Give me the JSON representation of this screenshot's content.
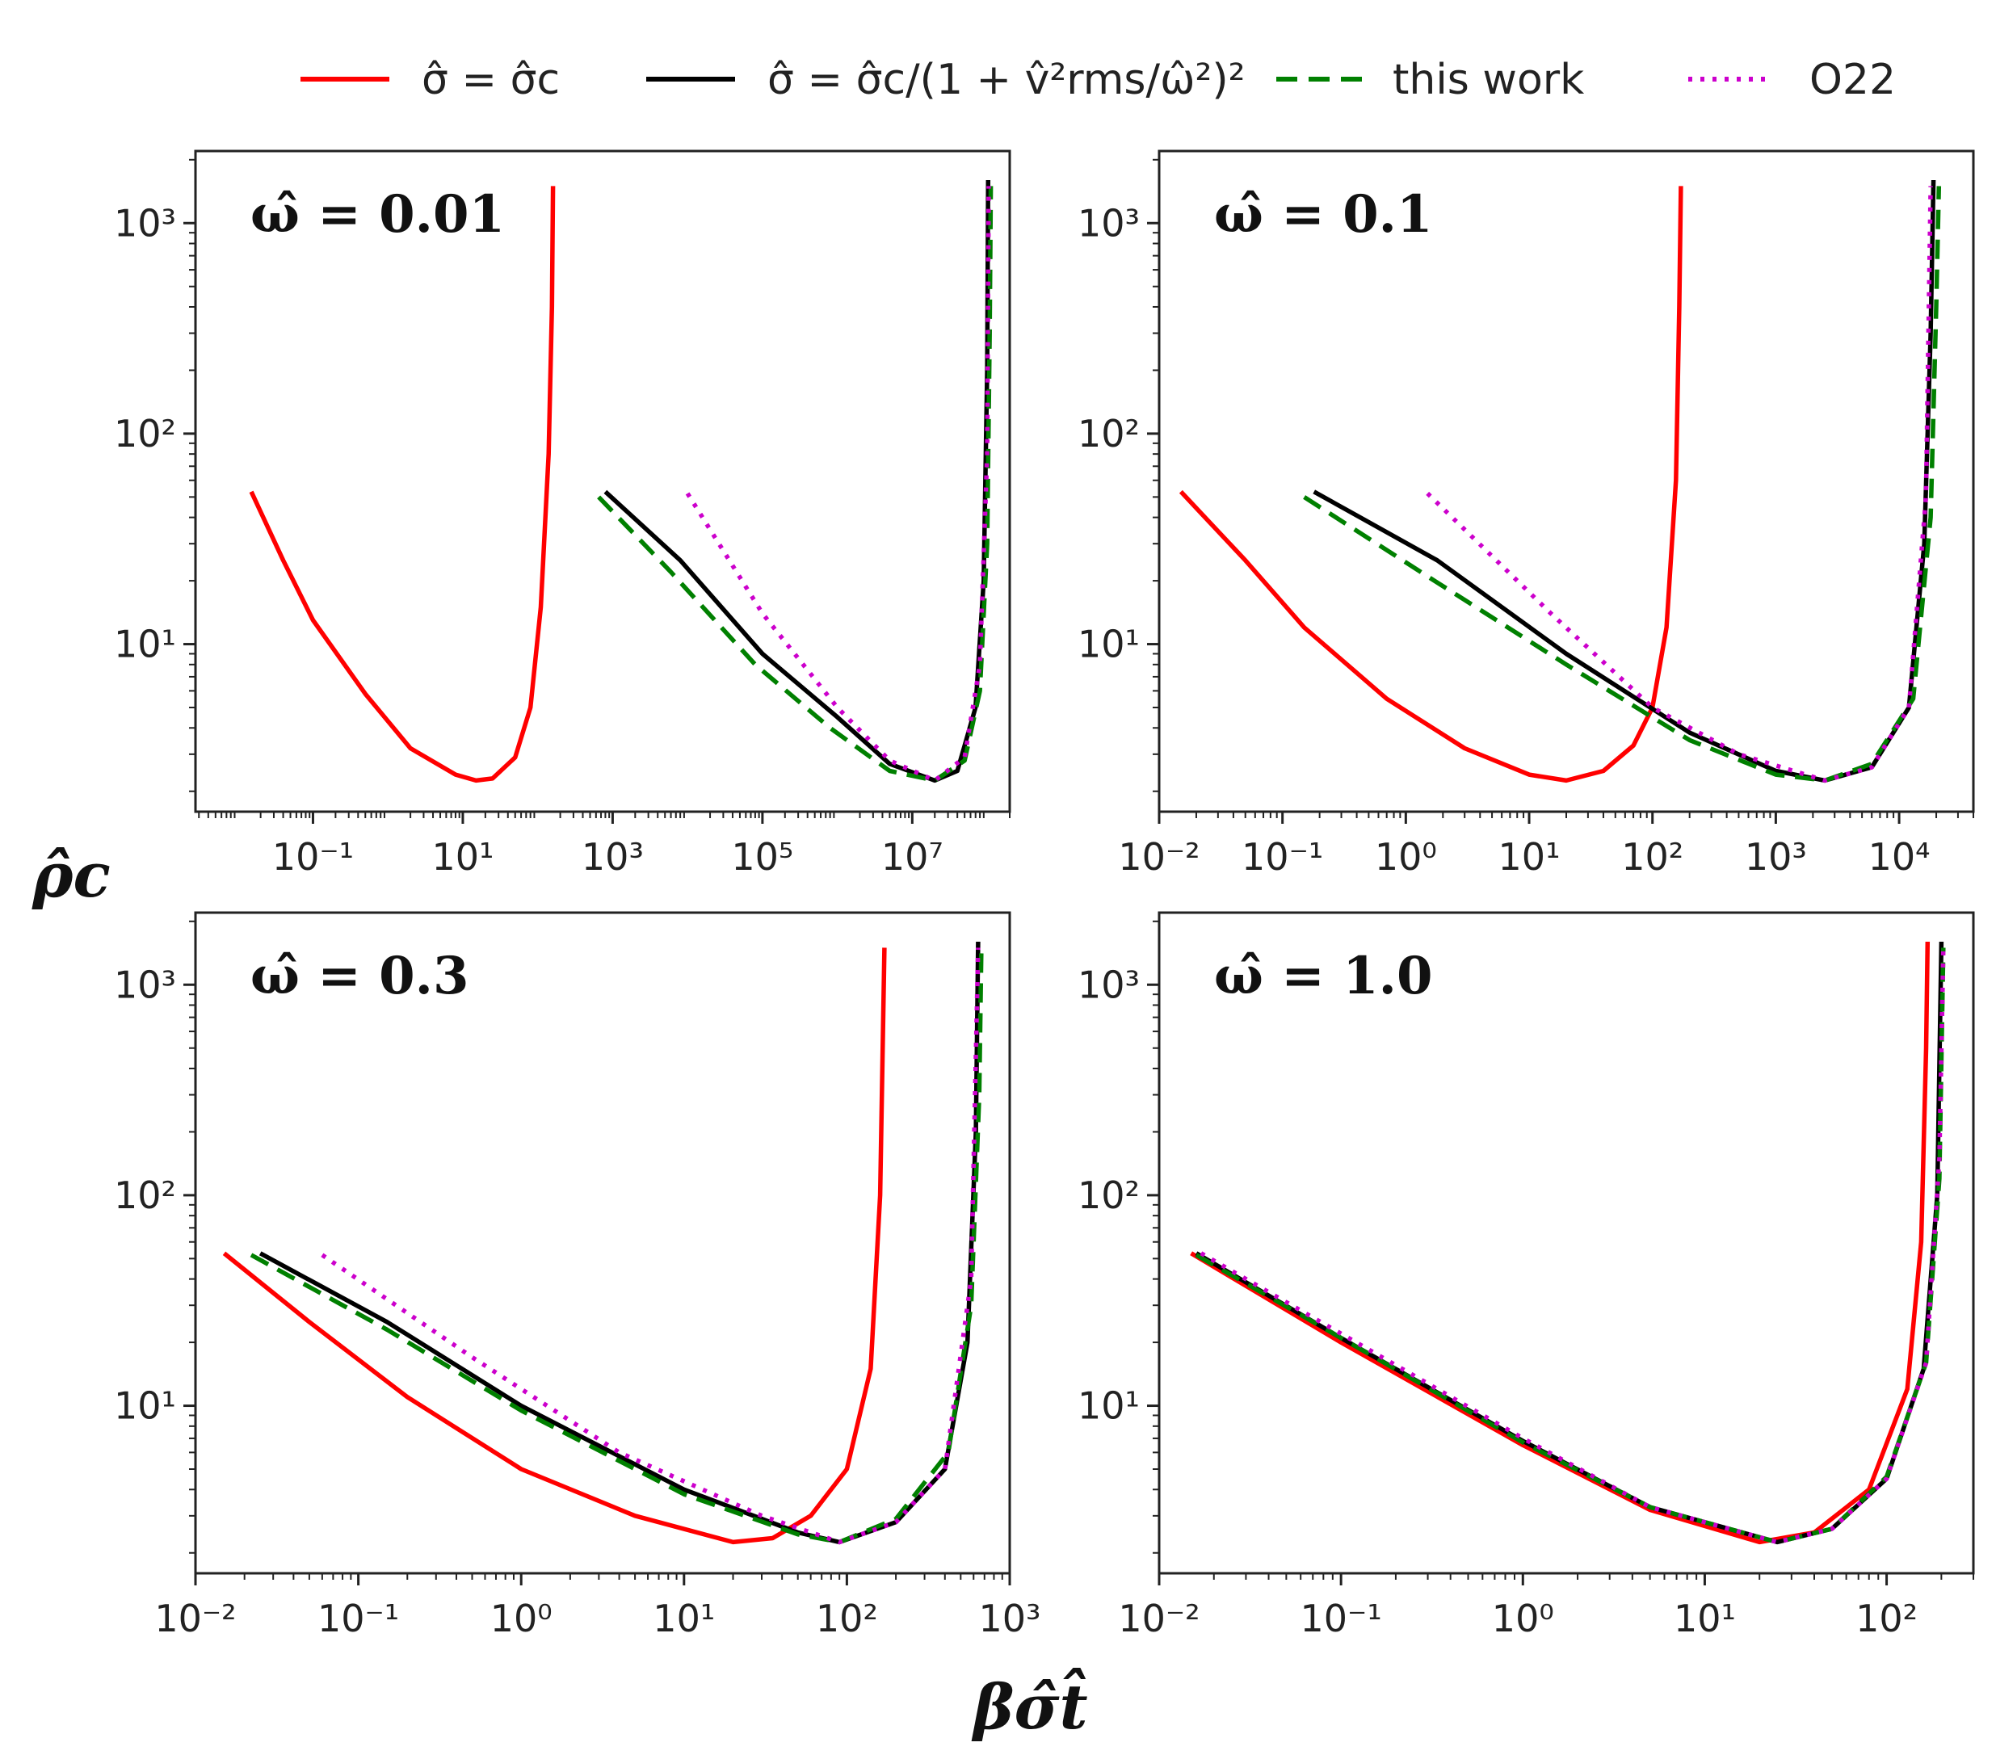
{
  "figure": {
    "ylabel": "ρ̂c",
    "xlabel": "βσ̂t̂"
  },
  "legend": [
    {
      "label": "σ̂ = σ̂c",
      "color": "#ff0000",
      "dash": "solid"
    },
    {
      "label": "σ̂ = σ̂c/(1 + v̂²rms/ω̂²)²",
      "color": "#000000",
      "dash": "solid"
    },
    {
      "label": "this work",
      "color": "#008000",
      "dash": "dashed"
    },
    {
      "label": "O22",
      "color": "#cc00cc",
      "dash": "dotted"
    }
  ],
  "chart_data": [
    {
      "type": "line",
      "panel_label": "ω̂ = 0.01",
      "x_scale": "log",
      "y_scale": "log",
      "xlim": [
        0.0027,
        200000000.0
      ],
      "ylim": [
        1.6,
        2200
      ],
      "x_tick_values": [
        0.1,
        10,
        1000,
        100000,
        10000000
      ],
      "x_tick_labels": [
        "10⁻¹",
        "10¹",
        "10³",
        "10⁵",
        "10⁷"
      ],
      "y_tick_values": [
        10,
        100,
        1000
      ],
      "y_tick_labels": [
        "10¹",
        "10²",
        "10³"
      ],
      "series": [
        {
          "name": "σ̂ = σ̂c",
          "points": [
            [
              0.015,
              53
            ],
            [
              0.04,
              25
            ],
            [
              0.1,
              13
            ],
            [
              0.5,
              5.8
            ],
            [
              2,
              3.2
            ],
            [
              8,
              2.4
            ],
            [
              15,
              2.25
            ],
            [
              25,
              2.3
            ],
            [
              50,
              2.9
            ],
            [
              80,
              5
            ],
            [
              110,
              15
            ],
            [
              140,
              80
            ],
            [
              155,
              400
            ],
            [
              160,
              1500
            ]
          ]
        },
        {
          "name": "σ̂ = σ̂c/(1 + v̂²rms/ω̂²)²",
          "points": [
            [
              800,
              53
            ],
            [
              8000,
              25
            ],
            [
              100000,
              9
            ],
            [
              1000000,
              4.5
            ],
            [
              5000000,
              2.7
            ],
            [
              20000000,
              2.25
            ],
            [
              40000000,
              2.5
            ],
            [
              70000000,
              5
            ],
            [
              90000000,
              20
            ],
            [
              100000000,
              200
            ],
            [
              103000000,
              1600
            ]
          ]
        },
        {
          "name": "this work",
          "points": [
            [
              650,
              50
            ],
            [
              6000,
              22
            ],
            [
              80000,
              8
            ],
            [
              800000,
              4
            ],
            [
              5000000,
              2.5
            ],
            [
              20000000,
              2.25
            ],
            [
              50000000,
              2.8
            ],
            [
              80000000,
              6
            ],
            [
              100000000,
              30
            ],
            [
              108000000,
              300
            ],
            [
              112000000,
              1500
            ]
          ]
        },
        {
          "name": "O22",
          "points": [
            [
              10000,
              52
            ],
            [
              100000,
              14
            ],
            [
              1000000,
              5
            ],
            [
              5000000,
              2.8
            ],
            [
              20000000,
              2.25
            ],
            [
              50000000,
              2.9
            ],
            [
              80000000,
              8
            ],
            [
              100000000,
              80
            ],
            [
              105000000,
              1500
            ]
          ]
        }
      ]
    },
    {
      "type": "line",
      "panel_label": "ω̂ = 0.1",
      "x_scale": "log",
      "y_scale": "log",
      "xlim": [
        0.01,
        40000
      ],
      "ylim": [
        1.6,
        2200
      ],
      "x_tick_values": [
        0.01,
        0.1,
        1,
        10,
        100,
        1000,
        10000
      ],
      "x_tick_labels": [
        "10⁻²",
        "10⁻¹",
        "10⁰",
        "10¹",
        "10²",
        "10³",
        "10⁴"
      ],
      "y_tick_values": [
        10,
        100,
        1000
      ],
      "y_tick_labels": [
        "10¹",
        "10²",
        "10³"
      ],
      "series": [
        {
          "name": "σ̂ = σ̂c",
          "points": [
            [
              0.015,
              53
            ],
            [
              0.05,
              25
            ],
            [
              0.15,
              12
            ],
            [
              0.7,
              5.5
            ],
            [
              3,
              3.2
            ],
            [
              10,
              2.4
            ],
            [
              20,
              2.25
            ],
            [
              40,
              2.5
            ],
            [
              70,
              3.3
            ],
            [
              100,
              5
            ],
            [
              130,
              12
            ],
            [
              155,
              60
            ],
            [
              165,
              400
            ],
            [
              170,
              1500
            ]
          ]
        },
        {
          "name": "σ̂ = σ̂c/(1 + v̂²rms/ω̂²)²",
          "points": [
            [
              0.18,
              53
            ],
            [
              1.8,
              25
            ],
            [
              20,
              9
            ],
            [
              200,
              3.8
            ],
            [
              1000,
              2.5
            ],
            [
              2500,
              2.25
            ],
            [
              6000,
              2.6
            ],
            [
              12000,
              5
            ],
            [
              16000,
              30
            ],
            [
              18000,
              300
            ],
            [
              19000,
              1600
            ]
          ]
        },
        {
          "name": "this work",
          "points": [
            [
              0.15,
              50
            ],
            [
              1.5,
              21
            ],
            [
              20,
              8
            ],
            [
              200,
              3.5
            ],
            [
              1000,
              2.4
            ],
            [
              2500,
              2.25
            ],
            [
              6000,
              2.7
            ],
            [
              13000,
              5.5
            ],
            [
              18000,
              40
            ],
            [
              20000,
              400
            ],
            [
              21000,
              1500
            ]
          ]
        },
        {
          "name": "O22",
          "points": [
            [
              1.5,
              52
            ],
            [
              15,
              14
            ],
            [
              100,
              5
            ],
            [
              500,
              3
            ],
            [
              2500,
              2.25
            ],
            [
              6000,
              2.6
            ],
            [
              12000,
              5
            ],
            [
              16500,
              50
            ],
            [
              18000,
              1500
            ]
          ]
        }
      ]
    },
    {
      "type": "line",
      "panel_label": "ω̂ = 0.3",
      "x_scale": "log",
      "y_scale": "log",
      "xlim": [
        0.01,
        1000
      ],
      "ylim": [
        1.6,
        2200
      ],
      "x_tick_values": [
        0.01,
        0.1,
        1,
        10,
        100,
        1000
      ],
      "x_tick_labels": [
        "10⁻²",
        "10⁻¹",
        "10⁰",
        "10¹",
        "10²",
        "10³"
      ],
      "y_tick_values": [
        10,
        100,
        1000
      ],
      "y_tick_labels": [
        "10¹",
        "10²",
        "10³"
      ],
      "series": [
        {
          "name": "σ̂ = σ̂c",
          "points": [
            [
              0.015,
              53
            ],
            [
              0.05,
              25
            ],
            [
              0.2,
              11
            ],
            [
              1,
              5
            ],
            [
              5,
              3
            ],
            [
              20,
              2.25
            ],
            [
              35,
              2.35
            ],
            [
              60,
              3
            ],
            [
              100,
              5
            ],
            [
              140,
              15
            ],
            [
              160,
              100
            ],
            [
              170,
              1500
            ]
          ]
        },
        {
          "name": "σ̂ = σ̂c/(1 + v̂²rms/ω̂²)²",
          "points": [
            [
              0.025,
              53
            ],
            [
              0.15,
              25
            ],
            [
              1,
              10
            ],
            [
              10,
              4
            ],
            [
              50,
              2.5
            ],
            [
              90,
              2.25
            ],
            [
              200,
              2.8
            ],
            [
              400,
              5
            ],
            [
              550,
              20
            ],
            [
              620,
              200
            ],
            [
              640,
              1600
            ]
          ]
        },
        {
          "name": "this work",
          "points": [
            [
              0.022,
              52
            ],
            [
              0.15,
              23
            ],
            [
              1,
              9.5
            ],
            [
              10,
              3.8
            ],
            [
              50,
              2.45
            ],
            [
              90,
              2.25
            ],
            [
              200,
              2.9
            ],
            [
              420,
              6
            ],
            [
              580,
              30
            ],
            [
              650,
              300
            ],
            [
              670,
              1500
            ]
          ]
        },
        {
          "name": "O22",
          "points": [
            [
              0.06,
              52
            ],
            [
              0.5,
              17
            ],
            [
              4,
              6
            ],
            [
              30,
              3
            ],
            [
              90,
              2.25
            ],
            [
              200,
              2.8
            ],
            [
              400,
              5
            ],
            [
              580,
              40
            ],
            [
              640,
              1500
            ]
          ]
        }
      ]
    },
    {
      "type": "line",
      "panel_label": "ω̂ = 1.0",
      "x_scale": "log",
      "y_scale": "log",
      "xlim": [
        0.01,
        300
      ],
      "ylim": [
        1.6,
        2200
      ],
      "x_tick_values": [
        0.01,
        0.1,
        1,
        10,
        100
      ],
      "x_tick_labels": [
        "10⁻²",
        "10⁻¹",
        "10⁰",
        "10¹",
        "10²"
      ],
      "y_tick_values": [
        10,
        100,
        1000
      ],
      "y_tick_labels": [
        "10¹",
        "10²",
        "10³"
      ],
      "series": [
        {
          "name": "σ̂ = σ̂c",
          "points": [
            [
              0.015,
              53
            ],
            [
              0.1,
              20
            ],
            [
              1,
              6.5
            ],
            [
              5,
              3.2
            ],
            [
              20,
              2.25
            ],
            [
              40,
              2.5
            ],
            [
              80,
              4
            ],
            [
              130,
              12
            ],
            [
              155,
              60
            ],
            [
              165,
              500
            ],
            [
              168,
              1600
            ]
          ]
        },
        {
          "name": "σ̂ = σ̂c/(1 + v̂²rms/ω̂²)²",
          "points": [
            [
              0.016,
              53
            ],
            [
              0.1,
              21
            ],
            [
              1,
              6.8
            ],
            [
              5,
              3.3
            ],
            [
              25,
              2.25
            ],
            [
              50,
              2.6
            ],
            [
              100,
              4.5
            ],
            [
              160,
              15
            ],
            [
              190,
              100
            ],
            [
              200,
              1600
            ]
          ]
        },
        {
          "name": "this work",
          "points": [
            [
              0.016,
              52
            ],
            [
              0.1,
              21
            ],
            [
              1,
              6.7
            ],
            [
              5,
              3.3
            ],
            [
              25,
              2.25
            ],
            [
              50,
              2.6
            ],
            [
              100,
              4.6
            ],
            [
              165,
              16
            ],
            [
              195,
              120
            ],
            [
              205,
              1500
            ]
          ]
        },
        {
          "name": "O22",
          "points": [
            [
              0.017,
              53
            ],
            [
              0.1,
              22
            ],
            [
              1,
              7
            ],
            [
              5,
              3.3
            ],
            [
              25,
              2.25
            ],
            [
              50,
              2.6
            ],
            [
              100,
              4.5
            ],
            [
              165,
              16
            ],
            [
              195,
              150
            ],
            [
              205,
              1500
            ]
          ]
        }
      ]
    }
  ]
}
